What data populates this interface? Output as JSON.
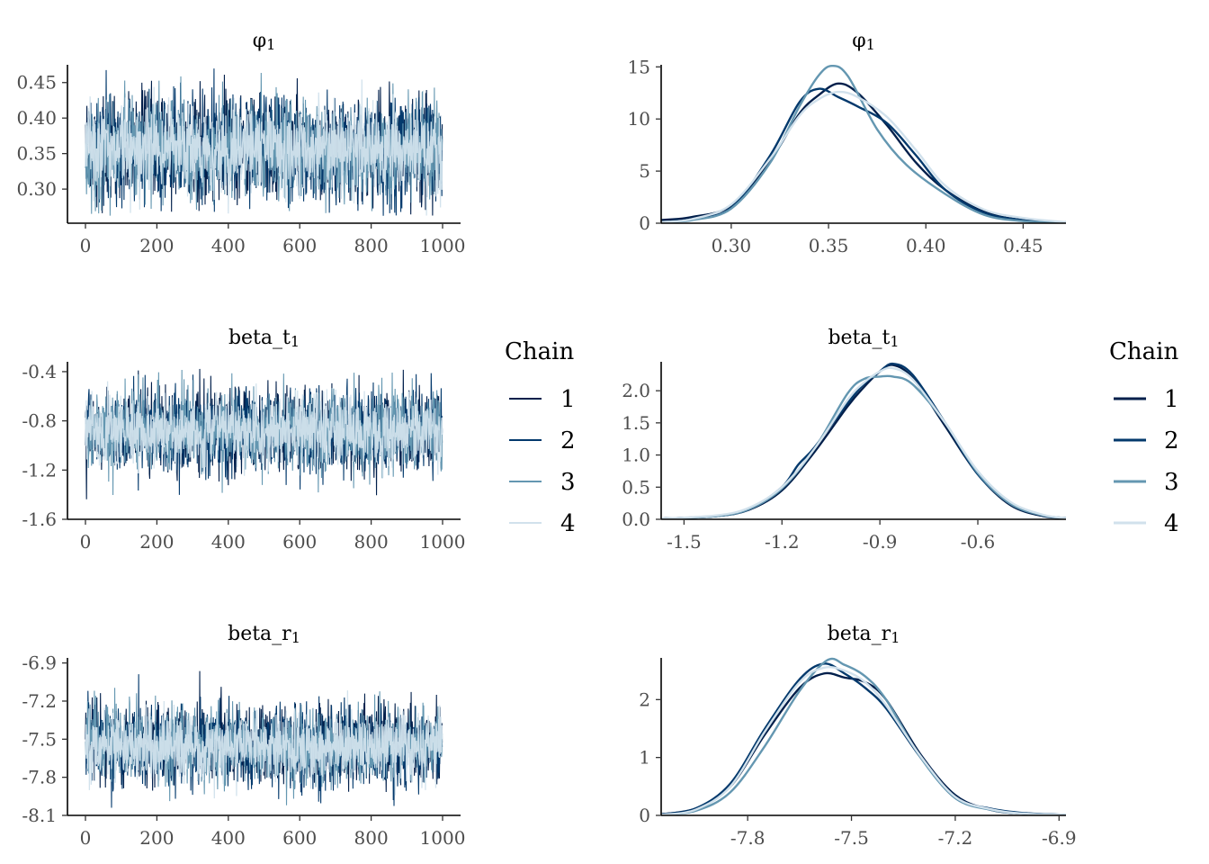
{
  "colors": {
    "chain_1": "#011f4b",
    "chain_2": "#03396c",
    "chain_3": "#6497b1",
    "chain_4": "#d1e1ec"
  },
  "legend": {
    "title": "Chain",
    "items": [
      "1",
      "2",
      "3",
      "4"
    ]
  },
  "chart_data": [
    {
      "type": "line",
      "kind": "trace",
      "title_base": "φ",
      "title_sub": "1",
      "xlim": [
        0,
        1000
      ],
      "xticks": [
        "0",
        "200",
        "400",
        "600",
        "800",
        "1000"
      ],
      "xtick_values": [
        0,
        200,
        400,
        600,
        800,
        1000
      ],
      "ylim": [
        0.252,
        0.475
      ],
      "yticks": [
        "0.30",
        "0.35",
        "0.40",
        "0.45"
      ],
      "ytick_values": [
        0.3,
        0.35,
        0.4,
        0.45
      ],
      "series_center": 0.356,
      "series_spread": 0.036,
      "series_min": 0.262,
      "series_max": 0.472,
      "iterations": 1000,
      "series": [
        {
          "name": "1"
        },
        {
          "name": "2"
        },
        {
          "name": "3"
        },
        {
          "name": "4"
        }
      ]
    },
    {
      "type": "line",
      "kind": "density",
      "title_base": "φ",
      "title_sub": "1",
      "xlim": [
        0.264,
        0.472
      ],
      "xticks": [
        "0.30",
        "0.35",
        "0.40",
        "0.45"
      ],
      "xtick_values": [
        0.3,
        0.35,
        0.4,
        0.45
      ],
      "ylim": [
        0,
        15.2
      ],
      "yticks": [
        "0",
        "5",
        "10",
        "15"
      ],
      "ytick_values": [
        0,
        5,
        10,
        15
      ],
      "series": [
        {
          "name": "1",
          "x": [
            0.264,
            0.28,
            0.3,
            0.32,
            0.335,
            0.345,
            0.355,
            0.365,
            0.38,
            0.395,
            0.41,
            0.43,
            0.45,
            0.472
          ],
          "y": [
            0.3,
            0.6,
            1.7,
            6,
            10.5,
            12.3,
            13.4,
            12.5,
            9.4,
            5.8,
            3.2,
            1.1,
            0.3,
            0.1
          ]
        },
        {
          "name": "2",
          "x": [
            0.264,
            0.28,
            0.3,
            0.32,
            0.335,
            0.345,
            0.355,
            0.365,
            0.38,
            0.395,
            0.41,
            0.43,
            0.45,
            0.472
          ],
          "y": [
            0.1,
            0.4,
            1.5,
            6.5,
            11.6,
            12.9,
            12.1,
            11.2,
            9.6,
            6.5,
            3.2,
            1.0,
            0.3,
            0.05
          ]
        },
        {
          "name": "3",
          "x": [
            0.264,
            0.28,
            0.3,
            0.32,
            0.335,
            0.345,
            0.352,
            0.36,
            0.375,
            0.39,
            0.41,
            0.43,
            0.45,
            0.472
          ],
          "y": [
            0.1,
            0.3,
            1.4,
            5.8,
            11.2,
            14.2,
            15.1,
            14.1,
            9.0,
            5.6,
            2.8,
            0.8,
            0.2,
            0.05
          ]
        },
        {
          "name": "4",
          "x": [
            0.264,
            0.28,
            0.3,
            0.32,
            0.335,
            0.345,
            0.355,
            0.365,
            0.38,
            0.395,
            0.41,
            0.43,
            0.45,
            0.472
          ],
          "y": [
            0.1,
            0.4,
            1.8,
            6.2,
            10.3,
            11.9,
            12.6,
            12.1,
            10.2,
            7.0,
            3.6,
            1.3,
            0.5,
            0.1
          ]
        }
      ]
    },
    {
      "type": "line",
      "kind": "trace",
      "title_base": "beta_t",
      "title_sub": "1",
      "xlim": [
        0,
        1000
      ],
      "xticks": [
        "0",
        "200",
        "400",
        "600",
        "800",
        "1000"
      ],
      "xtick_values": [
        0,
        200,
        400,
        600,
        800,
        1000
      ],
      "ylim": [
        -1.6,
        -0.32
      ],
      "yticks": [
        "-0.4",
        "-0.8",
        "-1.2",
        "-1.6"
      ],
      "ytick_values": [
        -0.4,
        -0.8,
        -1.2,
        -1.6
      ],
      "series_center": -0.88,
      "series_spread": 0.16,
      "series_min": -1.55,
      "series_max": -0.37,
      "iterations": 1000,
      "series": [
        {
          "name": "1"
        },
        {
          "name": "2"
        },
        {
          "name": "3"
        },
        {
          "name": "4"
        }
      ]
    },
    {
      "type": "line",
      "kind": "density",
      "title_base": "beta_t",
      "title_sub": "1",
      "xlim": [
        -1.57,
        -0.33
      ],
      "xticks": [
        "-1.5",
        "-1.2",
        "-0.9",
        "-0.6"
      ],
      "xtick_values": [
        -1.5,
        -1.2,
        -0.9,
        -0.6
      ],
      "ylim": [
        0,
        2.45
      ],
      "yticks": [
        "0.0",
        "0.5",
        "1.0",
        "1.5",
        "2.0"
      ],
      "ytick_values": [
        0.0,
        0.5,
        1.0,
        1.5,
        2.0
      ],
      "series": [
        {
          "name": "1",
          "x": [
            -1.57,
            -1.4,
            -1.3,
            -1.2,
            -1.1,
            -1.0,
            -0.95,
            -0.9,
            -0.86,
            -0.8,
            -0.7,
            -0.6,
            -0.5,
            -0.4,
            -0.33
          ],
          "y": [
            0.01,
            0.05,
            0.15,
            0.45,
            1.05,
            1.75,
            2.05,
            2.3,
            2.4,
            2.2,
            1.45,
            0.7,
            0.22,
            0.05,
            0.02
          ]
        },
        {
          "name": "2",
          "x": [
            -1.57,
            -1.4,
            -1.3,
            -1.2,
            -1.15,
            -1.1,
            -1.0,
            -0.95,
            -0.9,
            -0.86,
            -0.8,
            -0.7,
            -0.6,
            -0.5,
            -0.4,
            -0.33
          ],
          "y": [
            0.01,
            0.05,
            0.16,
            0.5,
            0.85,
            1.12,
            1.8,
            2.1,
            2.3,
            2.42,
            2.25,
            1.5,
            0.7,
            0.25,
            0.06,
            0.02
          ]
        },
        {
          "name": "3",
          "x": [
            -1.57,
            -1.4,
            -1.3,
            -1.2,
            -1.1,
            -1.0,
            -0.95,
            -0.9,
            -0.86,
            -0.8,
            -0.7,
            -0.6,
            -0.5,
            -0.4,
            -0.33
          ],
          "y": [
            0.01,
            0.05,
            0.16,
            0.48,
            1.1,
            1.95,
            2.18,
            2.22,
            2.22,
            2.1,
            1.5,
            0.72,
            0.24,
            0.06,
            0.02
          ]
        },
        {
          "name": "4",
          "x": [
            -1.57,
            -1.4,
            -1.3,
            -1.2,
            -1.1,
            -1.0,
            -0.95,
            -0.9,
            -0.86,
            -0.8,
            -0.7,
            -0.6,
            -0.5,
            -0.4,
            -0.33
          ],
          "y": [
            0.01,
            0.06,
            0.18,
            0.5,
            1.1,
            1.85,
            2.12,
            2.3,
            2.35,
            2.18,
            1.5,
            0.75,
            0.27,
            0.07,
            0.02
          ]
        }
      ]
    },
    {
      "type": "line",
      "kind": "trace",
      "title_base": "beta_r",
      "title_sub": "1",
      "xlim": [
        0,
        1000
      ],
      "xticks": [
        "0",
        "200",
        "400",
        "600",
        "800",
        "1000"
      ],
      "xtick_values": [
        0,
        200,
        400,
        600,
        800,
        1000
      ],
      "ylim": [
        -8.1,
        -6.86
      ],
      "yticks": [
        "-6.9",
        "-7.2",
        "-7.5",
        "-7.8",
        "-8.1"
      ],
      "ytick_values": [
        -6.9,
        -7.2,
        -7.5,
        -7.8,
        -8.1
      ],
      "series_center": -7.55,
      "series_spread": 0.15,
      "series_min": -8.04,
      "series_max": -6.88,
      "iterations": 1000,
      "series": [
        {
          "name": "1"
        },
        {
          "name": "2"
        },
        {
          "name": "3"
        },
        {
          "name": "4"
        }
      ]
    },
    {
      "type": "line",
      "kind": "density",
      "title_base": "beta_r",
      "title_sub": "1",
      "xlim": [
        -8.05,
        -6.88
      ],
      "xticks": [
        "-7.8",
        "-7.5",
        "-7.2",
        "-6.9"
      ],
      "xtick_values": [
        -7.8,
        -7.5,
        -7.2,
        -6.9
      ],
      "ylim": [
        0,
        2.72
      ],
      "yticks": [
        "0",
        "1",
        "2"
      ],
      "ytick_values": [
        0,
        1,
        2
      ],
      "series": [
        {
          "name": "1",
          "x": [
            -8.05,
            -7.95,
            -7.85,
            -7.75,
            -7.65,
            -7.58,
            -7.52,
            -7.46,
            -7.4,
            -7.3,
            -7.2,
            -7.1,
            -7.0,
            -6.88
          ],
          "y": [
            0.02,
            0.12,
            0.5,
            1.4,
            2.2,
            2.45,
            2.38,
            2.3,
            2.0,
            1.05,
            0.35,
            0.1,
            0.03,
            0.01
          ]
        },
        {
          "name": "2",
          "x": [
            -8.05,
            -7.95,
            -7.85,
            -7.75,
            -7.65,
            -7.58,
            -7.52,
            -7.46,
            -7.4,
            -7.3,
            -7.2,
            -7.1,
            -7.0,
            -6.88
          ],
          "y": [
            0.02,
            0.12,
            0.55,
            1.5,
            2.35,
            2.62,
            2.45,
            2.2,
            1.85,
            1.0,
            0.3,
            0.12,
            0.04,
            0.01
          ]
        },
        {
          "name": "3",
          "x": [
            -8.05,
            -7.95,
            -7.85,
            -7.75,
            -7.65,
            -7.57,
            -7.52,
            -7.46,
            -7.4,
            -7.3,
            -7.2,
            -7.1,
            -7.0,
            -6.88
          ],
          "y": [
            0.01,
            0.08,
            0.4,
            1.2,
            2.15,
            2.68,
            2.6,
            2.4,
            2.0,
            1.0,
            0.3,
            0.1,
            0.03,
            0.01
          ]
        },
        {
          "name": "4",
          "x": [
            -8.05,
            -7.95,
            -7.85,
            -7.75,
            -7.65,
            -7.58,
            -7.52,
            -7.46,
            -7.4,
            -7.3,
            -7.2,
            -7.1,
            -7.0,
            -6.88
          ],
          "y": [
            0.01,
            0.1,
            0.5,
            1.45,
            2.3,
            2.55,
            2.5,
            2.3,
            1.9,
            1.02,
            0.32,
            0.11,
            0.03,
            0.01
          ]
        }
      ]
    }
  ]
}
